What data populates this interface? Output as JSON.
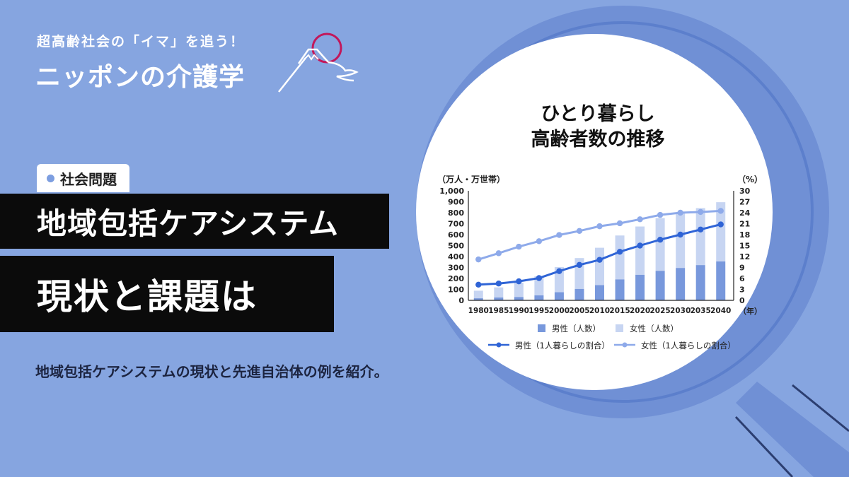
{
  "logo": {
    "tagline": "超高齢社会の「イマ」を追う！",
    "name": "ニッポンの介護学"
  },
  "category": {
    "label": "社会問題"
  },
  "headline": {
    "line1": "地域包括ケアシステム",
    "line2": "現状と課題は"
  },
  "description": "地域包括ケアシステムの現状と先進自治体の例を紹介。",
  "colors": {
    "background": "#86a5e0",
    "magnifier_ring": "#7090d5",
    "male_bar": "#7898dc",
    "female_bar": "#c7d5f2",
    "male_line": "#2f64d6",
    "female_line": "#8eaaea",
    "logo_accent": "#c2185b"
  },
  "chart_data": {
    "type": "bar",
    "title_line1": "ひとり暮らし",
    "title_line2": "高齢者数の推移",
    "ylabel_left": "（万人・万世帯）",
    "ylabel_right": "（%）",
    "xlabel": "（年）",
    "categories": [
      "1980",
      "1985",
      "1990",
      "1995",
      "2000",
      "2005",
      "2010",
      "2015",
      "2020",
      "2025",
      "2030",
      "2035",
      "2040"
    ],
    "ylim_left": [
      0,
      1000
    ],
    "ylim_right": [
      0,
      30
    ],
    "yticks_left": [
      "0",
      "100",
      "200",
      "300",
      "400",
      "500",
      "600",
      "700",
      "800",
      "900",
      "1,000"
    ],
    "yticks_right": [
      "0",
      "3",
      "6",
      "9",
      "12",
      "15",
      "18",
      "21",
      "24",
      "27",
      "30"
    ],
    "series": [
      {
        "name": "男性（人数）",
        "kind": "stacked-bar",
        "axis": "left",
        "values": [
          19,
          26,
          31,
          46,
          74,
          105,
          139,
          192,
          234,
          270,
          296,
          322,
          356
        ]
      },
      {
        "name": "女性（人数）",
        "kind": "stacked-bar",
        "axis": "left",
        "values": [
          69,
          92,
          131,
          174,
          229,
          281,
          341,
          400,
          440,
          481,
          500,
          520,
          540
        ]
      },
      {
        "name": "男性（1人暮らしの割合）",
        "kind": "line",
        "axis": "right",
        "values": [
          4.3,
          4.6,
          5.2,
          6.1,
          8.0,
          9.7,
          11.1,
          13.3,
          15.0,
          16.6,
          18.0,
          19.4,
          20.8
        ]
      },
      {
        "name": "女性（1人暮らしの割合）",
        "kind": "line",
        "axis": "right",
        "values": [
          11.2,
          12.9,
          14.7,
          16.2,
          17.9,
          19.0,
          20.3,
          21.1,
          22.2,
          23.4,
          24.0,
          24.2,
          24.5
        ]
      }
    ],
    "legend_position": "bottom",
    "grid": false
  }
}
